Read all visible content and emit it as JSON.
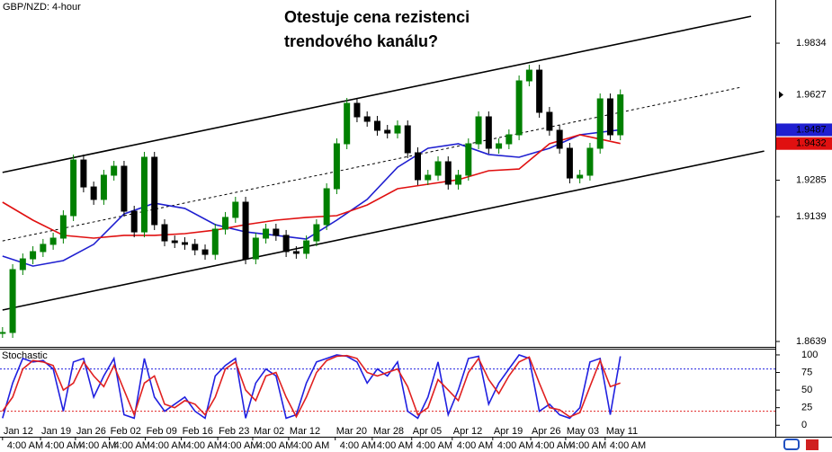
{
  "chart_data": [
    {
      "type": "candlestick",
      "title": "GBP/NZD: 4-hour",
      "annotation": [
        "Otestuje cena rezistenci",
        "trendového kanálu?"
      ],
      "x": [
        0,
        2,
        4,
        6,
        8,
        10,
        12,
        14,
        16,
        18,
        20,
        22,
        24,
        26,
        28,
        30,
        32,
        34,
        36,
        38,
        40,
        42,
        44,
        46,
        48,
        50,
        52,
        54,
        56,
        58,
        60,
        62,
        64,
        66,
        68,
        70,
        72,
        74,
        76,
        78,
        80,
        82,
        84,
        86,
        88,
        90,
        92,
        94,
        96,
        98,
        100,
        102,
        104,
        106,
        108,
        110,
        112,
        114,
        116,
        118,
        120,
        122
      ],
      "series": [
        {
          "name": "GBP/NZD",
          "color": "#008000",
          "down_color": "#000000",
          "values": [
            1.8675,
            1.8927,
            1.897,
            1.8999,
            1.9028,
            1.9053,
            1.9143,
            1.9366,
            1.9258,
            1.9208,
            1.9305,
            1.9341,
            1.9161,
            1.9078,
            1.9377,
            1.9107,
            1.9042,
            1.9035,
            1.9028,
            1.9006,
            1.8988,
            1.9089,
            1.9136,
            1.9197,
            1.897,
            1.9053,
            1.9089,
            1.9064,
            1.8999,
            1.8992,
            1.9042,
            1.9107,
            1.9251,
            1.9431,
            1.9593,
            1.9539,
            1.9521,
            1.9485,
            1.9474,
            1.9503,
            1.9395,
            1.9287,
            1.9305,
            1.9359,
            1.9269,
            1.9305,
            1.9431,
            1.9539,
            1.9413,
            1.9431,
            1.9467,
            1.9683,
            1.9726,
            1.9557,
            1.9485,
            1.9413,
            1.9294,
            1.9305,
            1.9413,
            1.9611,
            1.9467,
            1.9627
          ]
        }
      ],
      "overlays": [
        {
          "color": "#1f1fd0",
          "x": [
            0,
            6,
            12,
            18,
            24,
            30,
            36,
            42,
            48,
            54,
            60,
            66,
            72,
            78,
            84,
            90,
            96,
            102,
            108,
            114,
            122
          ],
          "values": [
            1.8981,
            1.8941,
            1.8963,
            1.9028,
            1.915,
            1.9193,
            1.9172,
            1.9107,
            1.9078,
            1.9064,
            1.9049,
            1.9125,
            1.9208,
            1.9337,
            1.9413,
            1.9431,
            1.9388,
            1.9377,
            1.9413,
            1.9467,
            1.9487
          ]
        },
        {
          "color": "#e01010",
          "x": [
            0,
            6,
            12,
            18,
            24,
            30,
            36,
            42,
            48,
            54,
            60,
            66,
            72,
            78,
            84,
            90,
            96,
            102,
            108,
            114,
            122
          ],
          "values": [
            1.9197,
            1.9125,
            1.9064,
            1.9053,
            1.9064,
            1.9064,
            1.9071,
            1.9085,
            1.9107,
            1.9125,
            1.9136,
            1.9143,
            1.9186,
            1.9251,
            1.9269,
            1.9287,
            1.9323,
            1.933,
            1.9431,
            1.9467,
            1.9432
          ]
        }
      ],
      "channels": [
        {
          "x": [
            0,
            147.8
          ],
          "values": [
            1.9316,
            1.9942
          ],
          "dashed": false
        },
        {
          "x": [
            0,
            146.0
          ],
          "values": [
            1.9042,
            1.9658
          ],
          "dashed": true
        },
        {
          "x": [
            0,
            150.4
          ],
          "values": [
            1.8765,
            1.9402
          ],
          "dashed": false
        }
      ],
      "xlim": [
        -0.5,
        152.6
      ],
      "ylim": [
        1.8621,
        2.0007
      ],
      "yticks": [
        1.9834,
        1.9285,
        1.9139,
        1.8639
      ],
      "xticks": [
        {
          "value": 0,
          "label": "Jan 12"
        },
        {
          "value": 7.5,
          "label": "Jan 19"
        },
        {
          "value": 14.4,
          "label": "Jan 26"
        },
        {
          "value": 21.1,
          "label": "Feb 02"
        },
        {
          "value": 28.2,
          "label": "Feb 09"
        },
        {
          "value": 35.3,
          "label": "Feb 16"
        },
        {
          "value": 42.5,
          "label": "Feb 23"
        },
        {
          "value": 49.4,
          "label": "Mar 02"
        },
        {
          "value": 56.5,
          "label": "Mar 12"
        },
        {
          "value": 65.7,
          "label": "Mar 20"
        },
        {
          "value": 73,
          "label": "Mar 28"
        },
        {
          "value": 80.8,
          "label": "Apr 05"
        },
        {
          "value": 88.8,
          "label": "Apr 12"
        },
        {
          "value": 96.8,
          "label": "Apr 19"
        },
        {
          "value": 104.3,
          "label": "Apr 26"
        },
        {
          "value": 111.2,
          "label": "May 03"
        },
        {
          "value": 119,
          "label": "May 11"
        }
      ],
      "time_labels": [
        "4:00 AM",
        "4:00 AM",
        "4:00 AM",
        "4:00 AM",
        "4:00 AM",
        "4:00 AM",
        "4:00 AM",
        "4:00 AM",
        "4:00 AM",
        "4:00 AM",
        "4:00 AM",
        "4:00 AM",
        "4:00 AM",
        "4:00 AM",
        "4:00 AM",
        "4:00 AM",
        "4:00 AM"
      ]
    },
    {
      "type": "line",
      "title": "Stochastic",
      "x": [
        0,
        2,
        4,
        6,
        8,
        10,
        12,
        14,
        16,
        18,
        20,
        22,
        24,
        26,
        28,
        30,
        32,
        34,
        36,
        38,
        40,
        42,
        44,
        46,
        48,
        50,
        52,
        54,
        56,
        58,
        60,
        62,
        64,
        66,
        68,
        70,
        72,
        74,
        76,
        78,
        80,
        82,
        84,
        86,
        88,
        90,
        92,
        94,
        96,
        98,
        100,
        102,
        104,
        106,
        108,
        110,
        112,
        114,
        116,
        118,
        120,
        122
      ],
      "series": [
        {
          "color": "#2020e0",
          "values": [
            10,
            60,
            95,
            90,
            92,
            80,
            20,
            90,
            95,
            40,
            70,
            95,
            15,
            10,
            95,
            40,
            20,
            30,
            40,
            20,
            10,
            70,
            85,
            95,
            10,
            60,
            80,
            70,
            10,
            15,
            60,
            90,
            95,
            100,
            98,
            90,
            60,
            80,
            70,
            90,
            20,
            10,
            40,
            90,
            15,
            50,
            95,
            98,
            30,
            60,
            80,
            100,
            95,
            20,
            30,
            15,
            10,
            25,
            90,
            95,
            15,
            98
          ]
        },
        {
          "color": "#e02020",
          "values": [
            20,
            40,
            80,
            92,
            90,
            85,
            50,
            60,
            90,
            70,
            55,
            85,
            50,
            15,
            60,
            70,
            30,
            25,
            35,
            30,
            15,
            40,
            80,
            90,
            50,
            35,
            70,
            75,
            40,
            12,
            40,
            75,
            92,
            98,
            99,
            95,
            75,
            70,
            75,
            80,
            55,
            15,
            25,
            65,
            50,
            35,
            75,
            95,
            65,
            45,
            70,
            90,
            97,
            60,
            25,
            22,
            12,
            18,
            55,
            92,
            55,
            60
          ]
        }
      ],
      "levels": [
        {
          "value": 80,
          "color": "#2020e0"
        },
        {
          "value": 20,
          "color": "#e02020"
        }
      ],
      "xlim": [
        -0.5,
        152.6
      ],
      "ylim": [
        -15,
        107.6
      ],
      "yticks": [
        100,
        75,
        50,
        25,
        0
      ]
    }
  ]
}
